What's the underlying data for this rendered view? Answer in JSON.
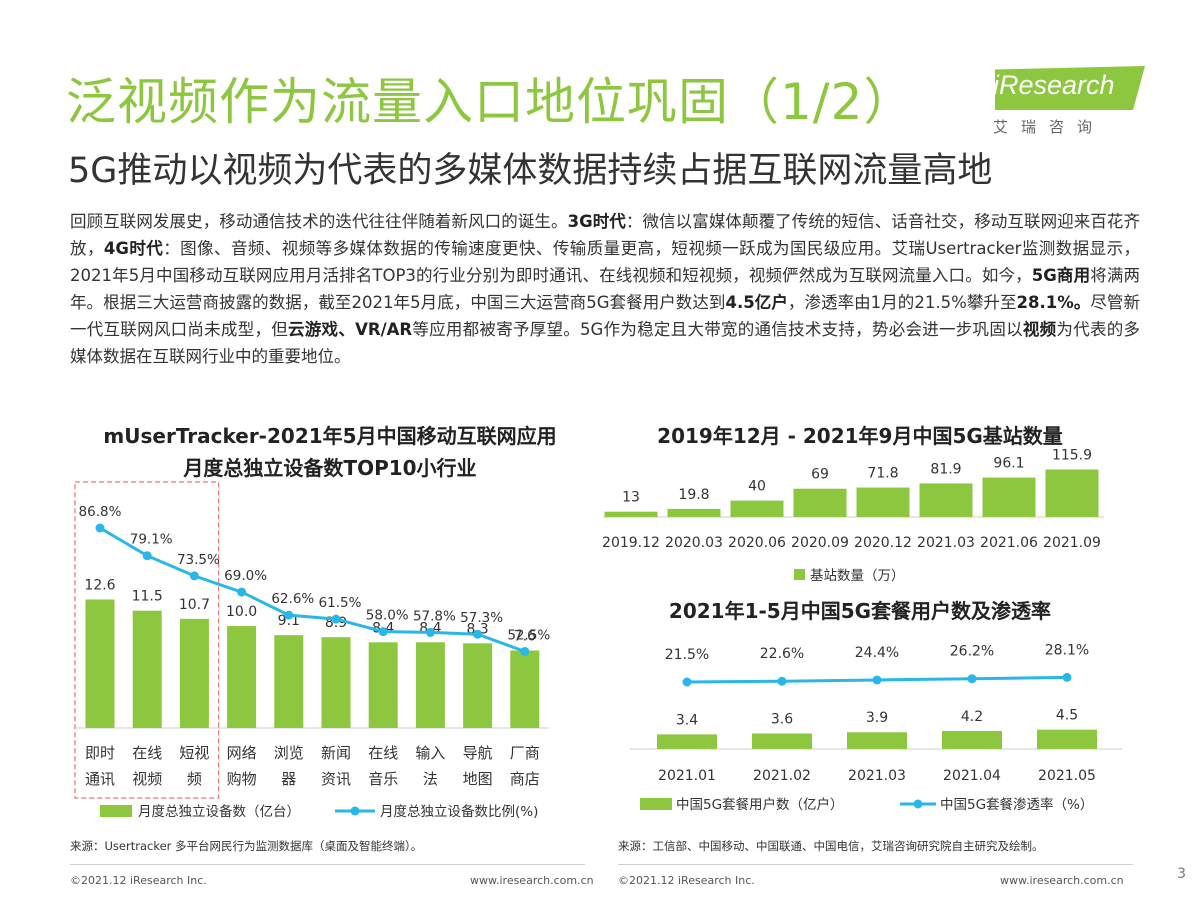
{
  "header": {
    "title": "泛视频作为流量入口地位巩固（1/2）",
    "subtitle": "5G推动以视频为代表的多媒体数据持续占据互联网流量高地",
    "logo_text": "iResearch",
    "logo_cn": "艾瑞咨询"
  },
  "body_paragraph": {
    "p1": "回顾互联网发展史，移动通信技术的迭代往往伴随着新风口的诞生。",
    "b1": "3G时代",
    "p2": "：微信以富媒体颠覆了传统的短信、话音社交，移动互联网迎来百花齐放，",
    "b2": "4G时代",
    "p3": "：图像、音频、视频等多媒体数据的传输速度更快、传输质量更高，短视频一跃成为国民级应用。艾瑞Usertracker监测数据显示，2021年5月中国移动互联网应用月活排名TOP3的行业分别为即时通讯、在线视频和短视频，视频俨然成为互联网流量入口。如今，",
    "b3": "5G商用",
    "p4": "将满两年。根据三大运营商披露的数据，截至2021年5月底，中国三大运营商5G套餐用户数达到",
    "b4": "4.5亿户",
    "p5": "，渗透率由1月的21.5%攀升至",
    "b5": "28.1%。",
    "p6": "尽管新一代互联网风口尚未成型，但",
    "b6": "云游戏、VR/AR",
    "p7": "等应用都被寄予厚望。5G作为稳定且大带宽的通信技术支持，势必会进一步巩固以",
    "b7": "视频",
    "p8": "为代表的多媒体数据在互联网行业中的重要地位。"
  },
  "colors": {
    "green": "#8dc63f",
    "blue": "#29b6e8",
    "highlight_box": "#e87a7a"
  },
  "chart_data": [
    {
      "type": "bar",
      "title_line1": "mUserTracker-2021年5月中国移动互联网应用",
      "title_line2": "月度总独立设备数TOP10小行业",
      "categories": [
        [
          "即时",
          "通讯"
        ],
        [
          "在线",
          "视频"
        ],
        [
          "短视",
          "频"
        ],
        [
          "网络",
          "购物"
        ],
        [
          "浏览",
          "器"
        ],
        [
          "新闻",
          "资讯"
        ],
        [
          "在线",
          "音乐"
        ],
        [
          "输入",
          "法"
        ],
        [
          "导航",
          "地图"
        ],
        [
          "厂商",
          "商店"
        ]
      ],
      "series": [
        {
          "name": "月度总独立设备数（亿台）",
          "type": "bar",
          "values": [
            12.6,
            11.5,
            10.7,
            10.0,
            9.1,
            8.9,
            8.4,
            8.4,
            8.3,
            7.6
          ],
          "labels": [
            "12.6",
            "11.5",
            "10.7",
            "10.0",
            "9.1",
            "8.9",
            "8.4",
            "8.4",
            "8.3",
            "7.6"
          ]
        },
        {
          "name": "月度总独立设备数比例(%)",
          "type": "line",
          "values": [
            86.8,
            79.1,
            73.5,
            69.0,
            62.6,
            61.5,
            58.0,
            57.8,
            57.3,
            52.5
          ],
          "labels": [
            "86.8%",
            "79.1%",
            "73.5%",
            "69.0%",
            "62.6%",
            "61.5%",
            "58.0%",
            "57.8%",
            "57.3%",
            "52.5%"
          ]
        }
      ],
      "highlighted_categories": 3,
      "legend_position": "bottom",
      "source": "来源：Usertracker 多平台网民行为监测数据库（桌面及智能终端）。"
    },
    {
      "type": "bar",
      "title": "2019年12月 - 2021年9月中国5G基站数量",
      "categories": [
        "2019.12",
        "2020.03",
        "2020.06",
        "2020.09",
        "2020.12",
        "2021.03",
        "2021.06",
        "2021.09"
      ],
      "series": [
        {
          "name": "基站数量（万）",
          "values": [
            13,
            19.8,
            40,
            69,
            71.8,
            81.9,
            96.1,
            115.9
          ],
          "labels": [
            "13",
            "19.8",
            "40",
            "69",
            "71.8",
            "81.9",
            "96.1",
            "115.9"
          ]
        }
      ],
      "legend_position": "bottom"
    },
    {
      "type": "bar",
      "title": "2021年1-5月中国5G套餐用户数及渗透率",
      "categories": [
        "2021.01",
        "2021.02",
        "2021.03",
        "2021.04",
        "2021.05"
      ],
      "series": [
        {
          "name": "中国5G套餐用户数（亿户）",
          "type": "bar",
          "values": [
            3.4,
            3.6,
            3.9,
            4.2,
            4.5
          ],
          "labels": [
            "3.4",
            "3.6",
            "3.9",
            "4.2",
            "4.5"
          ]
        },
        {
          "name": "中国5G套餐渗透率（%）",
          "type": "line",
          "values": [
            21.5,
            22.6,
            24.4,
            26.2,
            28.1
          ],
          "labels": [
            "21.5%",
            "22.6%",
            "24.4%",
            "26.2%",
            "28.1%"
          ]
        }
      ],
      "legend_position": "bottom",
      "source": "来源：工信部、中国移动、中国联通、中国电信，艾瑞咨询研究院自主研究及绘制。"
    }
  ],
  "footer": {
    "copyright": "©2021.12 iResearch Inc.",
    "url": "www.iresearch.com.cn",
    "page_number": "3"
  }
}
